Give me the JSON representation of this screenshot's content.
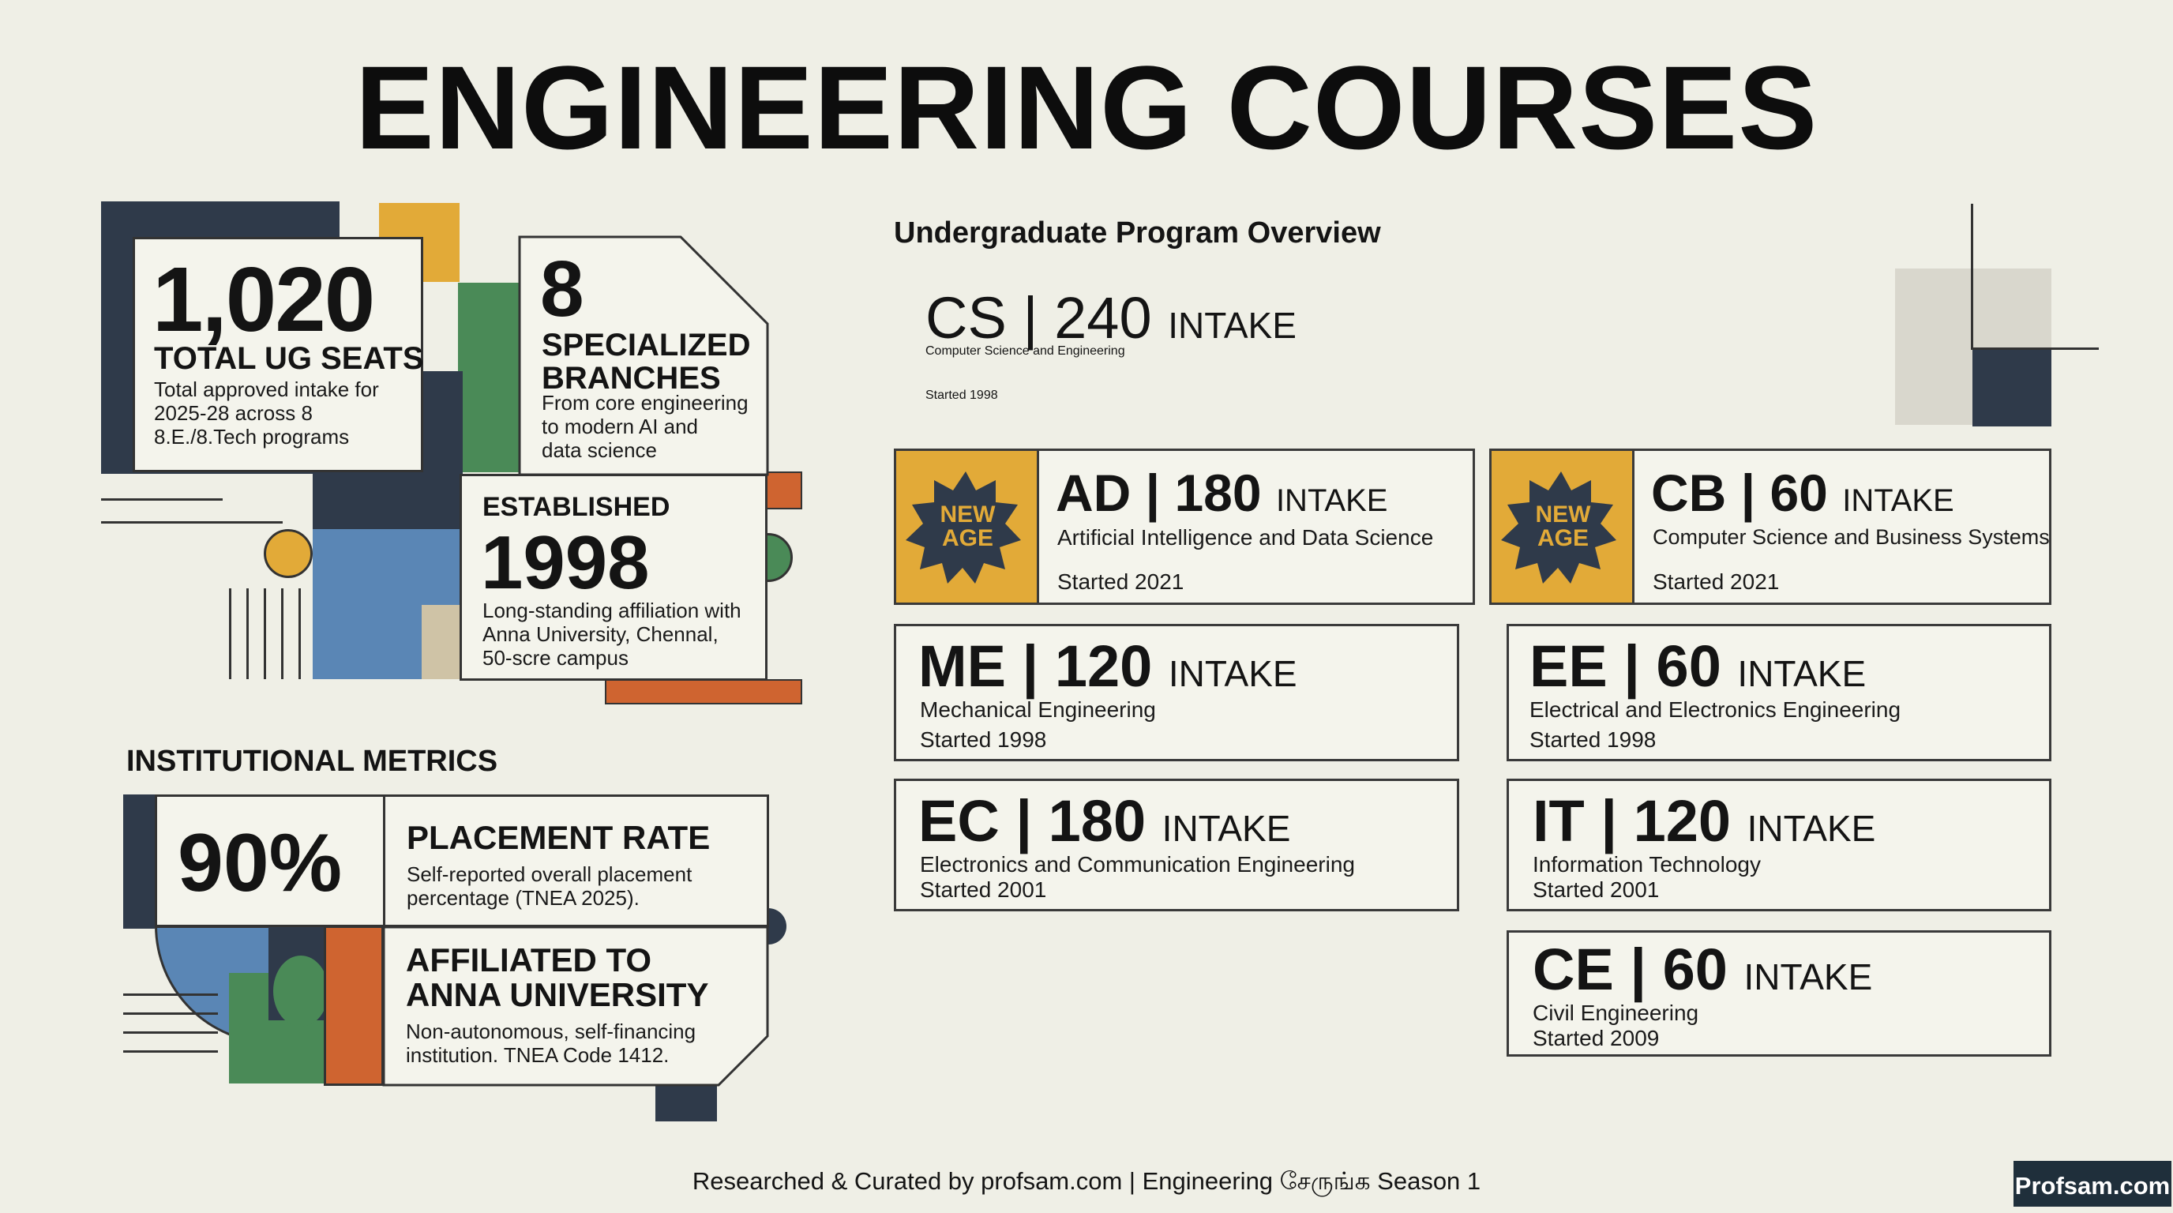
{
  "title": "ENGINEERING COURSES",
  "colors": {
    "background": "#efefe6",
    "navy": "#2f3a4a",
    "mustard": "#e2aa38",
    "green": "#4a8a57",
    "blue": "#5a86b5",
    "orange": "#cf6430",
    "tan": "#cfc3a6"
  },
  "stats": {
    "seats": {
      "value": "1,020",
      "label": "TOTAL UG SEATS",
      "desc": [
        "Total approved intake for",
        "2025-28 across 8",
        "8.E./8.Tech programs"
      ]
    },
    "branches": {
      "value": "8",
      "label": [
        "SPECIALIZED",
        "BRANCHES"
      ],
      "desc": [
        "From core engineering",
        "to modern AI and",
        "data science"
      ]
    },
    "established": {
      "label": "ESTABLISHED",
      "value": "1998",
      "desc": [
        "Long-standing affiliation with",
        "Anna University, Chennal,",
        "50-scre campus"
      ]
    }
  },
  "metrics": {
    "heading": "INSTITUTIONAL METRICS",
    "placement": {
      "value": "90%",
      "label": "PLACEMENT RATE",
      "desc": [
        "Self-reported overall placement",
        "percentage (TNEA 2025)."
      ]
    },
    "affiliation": {
      "label": [
        "AFFILIATED TO",
        "ANNA UNIVERSITY"
      ],
      "desc": [
        "Non-autonomous, self-financing",
        "institution. TNEA Code 1412."
      ]
    }
  },
  "overview": {
    "heading": "Undergraduate Program Overview",
    "intake_word": "INTAKE",
    "badge": [
      "NEW",
      "AGE"
    ],
    "courses": [
      {
        "code": "CS",
        "intake": "240",
        "name": "Computer Science and Engineering",
        "started": "Started 1998"
      },
      {
        "code": "AD",
        "intake": "180",
        "name": "Artificial Intelligence and Data Science",
        "started": "Started 2021",
        "new_age": true
      },
      {
        "code": "CB",
        "intake": "60",
        "name": "Computer Science and Business Systems",
        "started": "Started 2021",
        "new_age": true
      },
      {
        "code": "ME",
        "intake": "120",
        "name": "Mechanical Engineering",
        "started": "Started 1998"
      },
      {
        "code": "EE",
        "intake": "60",
        "name": "Electrical and Electronics Engineering",
        "started": "Started 1998"
      },
      {
        "code": "EC",
        "intake": "180",
        "name": "Electronics and Communication Engineering",
        "started": "Started 2001"
      },
      {
        "code": "IT",
        "intake": "120",
        "name": "Information Technology",
        "started": "Started 2001"
      },
      {
        "code": "CE",
        "intake": "60",
        "name": "Civil Engineering",
        "started": "Started 2009"
      }
    ]
  },
  "footer": "Researched & Curated by profsam.com | Engineering சேருங்க Season 1",
  "logo_text": "Profsam.com"
}
